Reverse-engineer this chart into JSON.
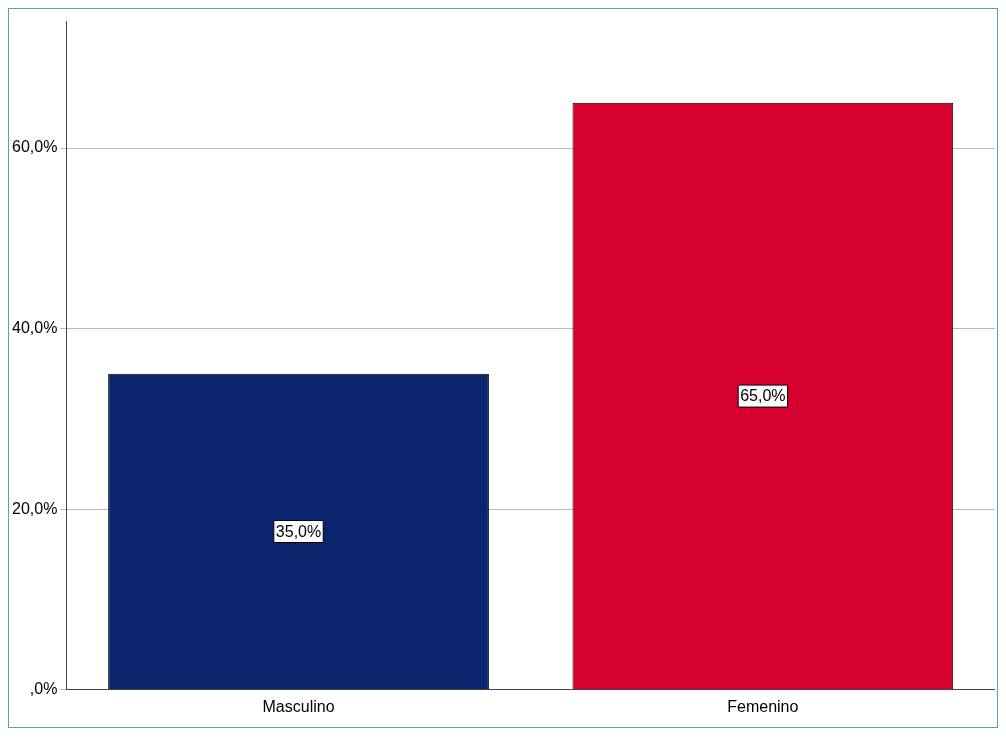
{
  "chart_data": {
    "type": "bar",
    "categories": [
      "Masculino",
      "Femenino"
    ],
    "values": [
      35,
      65
    ],
    "colors": [
      "#0a246e",
      "#d6002f"
    ],
    "value_labels": [
      "35,0%",
      "65,0%"
    ],
    "ylim": [
      0,
      74
    ],
    "yticks": [
      {
        "value": 0,
        "label": ",0%"
      },
      {
        "value": 20,
        "label": "20,0%"
      },
      {
        "value": 40,
        "label": "40,0%"
      },
      {
        "value": 60,
        "label": "60,0%"
      }
    ],
    "grid": "y",
    "legend": false
  }
}
